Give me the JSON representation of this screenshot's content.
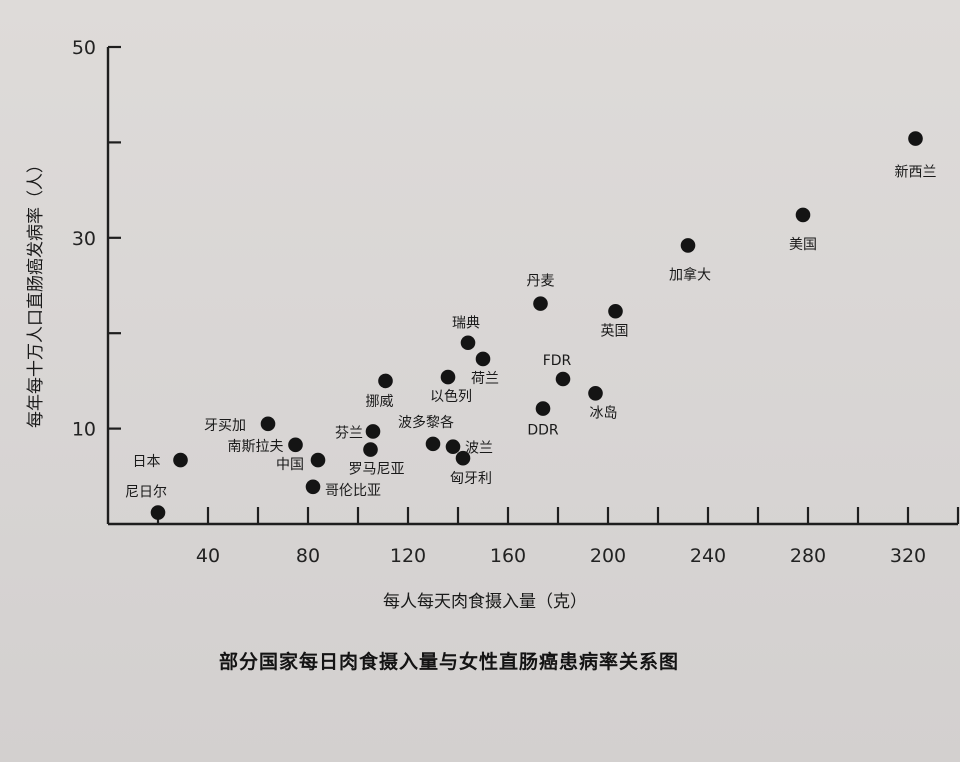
{
  "chart_data": {
    "type": "scatter",
    "title": "部分国家每日肉食摄入量与女性直肠癌患病率关系图",
    "xlabel": "每人每天肉食摄入量（克）",
    "ylabel": "每年每十万人口直肠癌发病率（人）",
    "xlim": [
      0,
      340
    ],
    "ylim": [
      0,
      50
    ],
    "x_ticks": [
      40,
      80,
      120,
      160,
      200,
      240,
      280,
      320
    ],
    "x_tick_labels": [
      "40",
      "80",
      "120",
      "160",
      "200",
      "240",
      "280",
      "320"
    ],
    "y_ticks": [
      10,
      30,
      50
    ],
    "y_tick_labels": [
      "10",
      "30",
      "50"
    ],
    "grid": false,
    "points": [
      {
        "label": "尼日尔",
        "x": 20,
        "y": 1.2
      },
      {
        "label": "日本",
        "x": 29,
        "y": 6.7
      },
      {
        "label": "牙买加",
        "x": 64,
        "y": 10.5
      },
      {
        "label": "南斯拉夫",
        "x": 75,
        "y": 8.3
      },
      {
        "label": "中国",
        "x": 84,
        "y": 6.7
      },
      {
        "label": "哥伦比亚",
        "x": 82,
        "y": 3.9
      },
      {
        "label": "芬兰",
        "x": 106,
        "y": 9.7
      },
      {
        "label": "罗马尼亚",
        "x": 105,
        "y": 7.8
      },
      {
        "label": "挪威",
        "x": 111,
        "y": 15.0
      },
      {
        "label": "波多黎各",
        "x": 130,
        "y": 8.4
      },
      {
        "label": "以色列",
        "x": 136,
        "y": 15.4
      },
      {
        "label": "波兰",
        "x": 138,
        "y": 8.1
      },
      {
        "label": "匈牙利",
        "x": 142,
        "y": 6.9
      },
      {
        "label": "瑞典",
        "x": 144,
        "y": 19.0
      },
      {
        "label": "荷兰",
        "x": 150,
        "y": 17.3
      },
      {
        "label": "丹麦",
        "x": 173,
        "y": 23.1
      },
      {
        "label": "DDR",
        "x": 174,
        "y": 12.1
      },
      {
        "label": "FDR",
        "x": 182,
        "y": 15.2
      },
      {
        "label": "冰岛",
        "x": 195,
        "y": 13.7
      },
      {
        "label": "英国",
        "x": 203,
        "y": 22.3
      },
      {
        "label": "加拿大",
        "x": 232,
        "y": 29.2
      },
      {
        "label": "美国",
        "x": 278,
        "y": 32.4
      },
      {
        "label": "新西兰",
        "x": 323,
        "y": 40.4
      }
    ]
  }
}
